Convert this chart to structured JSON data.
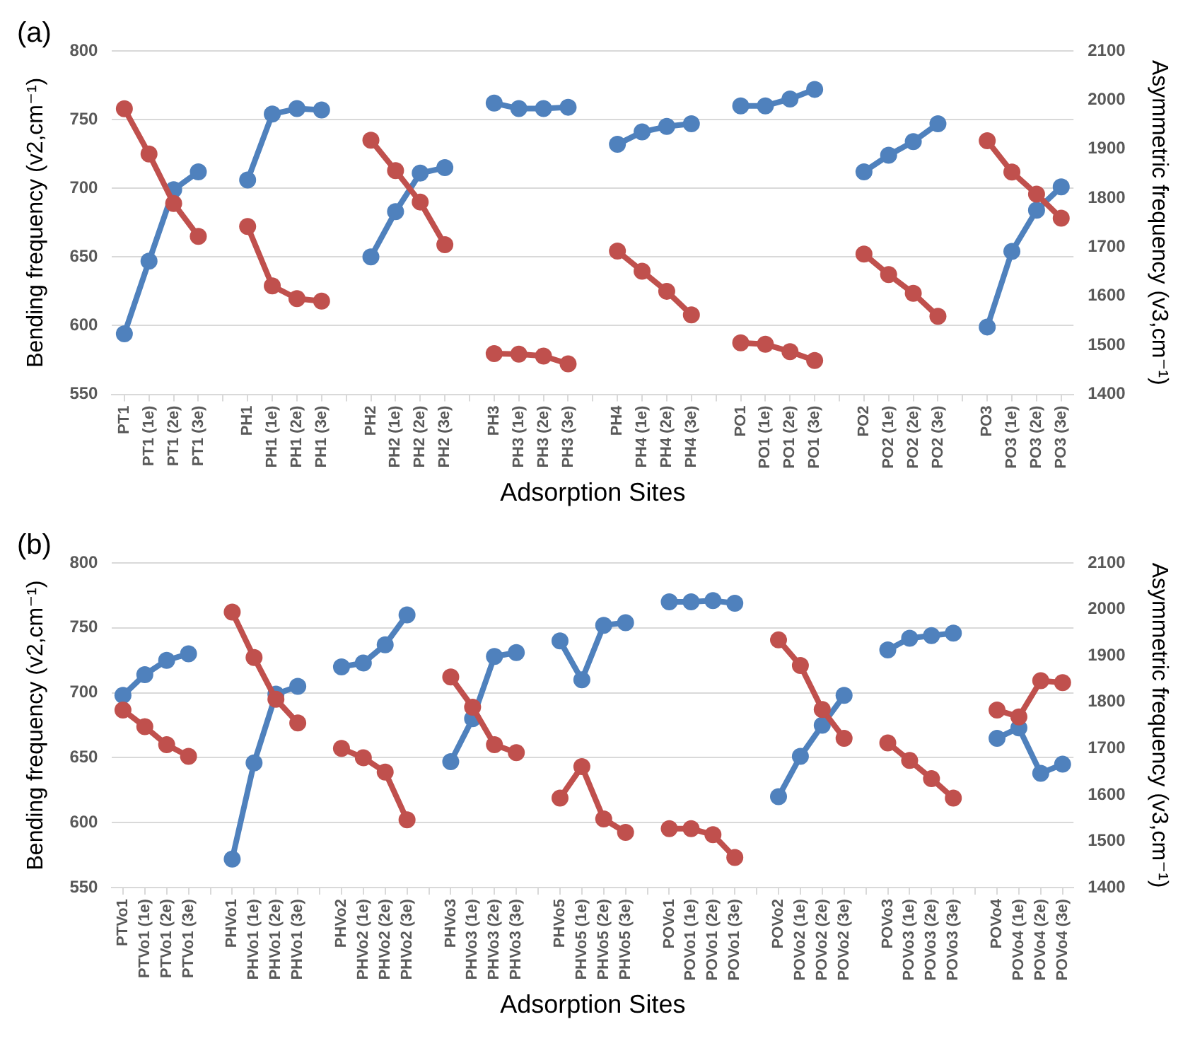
{
  "chart_data": [
    {
      "type": "line",
      "title": "(a)",
      "xlabel": "Adsorption Sites",
      "ylabel": "Bending frequency (v2,cm⁻¹)",
      "y2label": "Asymmetric frequency (v3,cm⁻¹)",
      "categories": [
        "PT1",
        "PT1 (1e)",
        "PT1 (2e)",
        "PT1 (3e)",
        null,
        "PH1",
        "PH1 (1e)",
        "PH1 (2e)",
        "PH1 (3e)",
        null,
        "PH2",
        "PH2 (1e)",
        "PH2 (2e)",
        "PH2 (3e)",
        null,
        "PH3",
        "PH3 (1e)",
        "PH3 (2e)",
        "PH3 (3e)",
        null,
        "PH4",
        "PH4 (1e)",
        "PH4 (2e)",
        "PH4 (3e)",
        null,
        "PO1",
        "PO1 (1e)",
        "PO1 (2e)",
        "PO1 (3e)",
        null,
        "PO2",
        "PO2 (1e)",
        "PO2 (2e)",
        "PO2 (3e)",
        null,
        "PO3",
        "PO3 (1e)",
        "PO3 (2e)",
        "PO3 (3e)"
      ],
      "series": [
        {
          "color": "#4f81bd",
          "values": [
            594,
            647,
            699,
            712,
            null,
            706,
            754,
            758,
            757,
            null,
            650,
            683,
            711,
            715,
            null,
            762,
            758,
            758,
            759,
            null,
            732,
            741,
            745,
            747,
            null,
            760,
            760,
            765,
            772,
            null,
            712,
            724,
            734,
            747,
            null,
            599,
            654,
            684,
            701
          ]
        },
        {
          "color": "#c0504d",
          "axis": "y2",
          "values": [
            1982,
            1890,
            1789,
            1722,
            null,
            1742,
            1621,
            1595,
            1590,
            null,
            1918,
            1856,
            1792,
            1705,
            null,
            1483,
            1482,
            1478,
            1462,
            null,
            1692,
            1651,
            1610,
            1562,
            null,
            1505,
            1502,
            1487,
            1469,
            null,
            1686,
            1644,
            1606,
            1559,
            null,
            1917,
            1853,
            1808,
            1759
          ]
        }
      ],
      "ylim": [
        550,
        800
      ],
      "yticks": [
        550,
        600,
        650,
        700,
        750,
        800
      ],
      "y2lim": [
        1400,
        2100
      ],
      "y2ticks": [
        1400,
        1500,
        1600,
        1700,
        1800,
        1900,
        2000,
        2100
      ],
      "grid": "y",
      "legend": false,
      "marker": "circle",
      "line_style": "solid"
    },
    {
      "type": "line",
      "title": "(b)",
      "xlabel": "Adsorption Sites",
      "ylabel": "Bending frequency (v2,cm⁻¹)",
      "y2label": "Asymmetric frequency (v3,cm⁻¹)",
      "categories": [
        "PTVo1",
        "PTVo1 (1e)",
        "PTVo1 (2e)",
        "PTVo1 (3e)",
        null,
        "PHVo1",
        "PHVo1 (1e)",
        "PHVo1 (2e)",
        "PHVo1 (3e)",
        null,
        "PHVo2",
        "PHVo2 (1e)",
        "PHVo2 (2e)",
        "PHVo2 (3e)",
        null,
        "PHVo3",
        "PHVo3 (1e)",
        "PHVo3 (2e)",
        "PHVo3 (3e)",
        null,
        "PHVo5",
        "PHVo5 (1e)",
        "PHVo5 (2e)",
        "PHVo5 (3e)",
        null,
        "POVo1",
        "POVo1 (1e)",
        "POVo1 (2e)",
        "POVo1 (3e)",
        null,
        "POVo2",
        "POVo2 (1e)",
        "POVo2 (2e)",
        "POVo2 (3e)",
        null,
        "POVo3",
        "POVo3 (1e)",
        "POVo3 (2e)",
        "POVo3 (3e)",
        null,
        "POVo4",
        "POVo4 (1e)",
        "POVo4 (2e)",
        "POVo4 (3e)"
      ],
      "series": [
        {
          "color": "#4f81bd",
          "values": [
            698,
            714,
            725,
            730,
            null,
            572,
            646,
            699,
            705,
            null,
            720,
            723,
            737,
            760,
            null,
            647,
            680,
            728,
            731,
            null,
            740,
            710,
            752,
            754,
            null,
            770,
            770,
            771,
            769,
            null,
            620,
            651,
            675,
            698,
            null,
            733,
            742,
            744,
            746,
            null,
            665,
            673,
            638,
            645
          ]
        },
        {
          "color": "#c0504d",
          "axis": "y2",
          "values": [
            1783,
            1747,
            1708,
            1683,
            null,
            1994,
            1896,
            1806,
            1755,
            null,
            1700,
            1680,
            1649,
            1546,
            null,
            1854,
            1789,
            1708,
            1691,
            null,
            1593,
            1661,
            1548,
            1519,
            null,
            1527,
            1527,
            1514,
            1465,
            null,
            1934,
            1879,
            1784,
            1722,
            null,
            1712,
            1674,
            1635,
            1593,
            null,
            1783,
            1768,
            1846,
            1842
          ]
        }
      ],
      "ylim": [
        550,
        800
      ],
      "yticks": [
        550,
        600,
        650,
        700,
        750,
        800
      ],
      "y2lim": [
        1400,
        2100
      ],
      "y2ticks": [
        1400,
        1500,
        1600,
        1700,
        1800,
        1900,
        2000,
        2100
      ],
      "grid": "y",
      "legend": false,
      "marker": "circle",
      "line_style": "solid"
    }
  ]
}
